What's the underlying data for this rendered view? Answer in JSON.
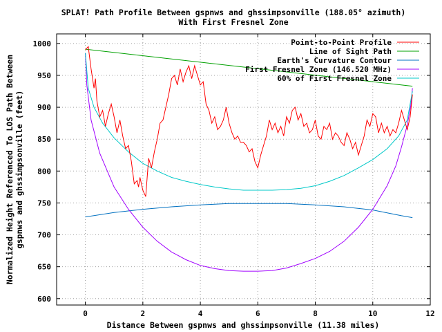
{
  "chart_data": {
    "type": "line",
    "title": [
      "SPLAT! Path Profile Between gspnws and ghssimpsonville (188.05° azimuth)",
      "With First Fresnel Zone"
    ],
    "xlabel": "Distance Between gspnws and ghssimpsonville (11.38 miles)",
    "ylabel": [
      "Normalized Height Referenced To LOS Path Between",
      "gspnws and ghssimpsonville (feet)"
    ],
    "xlim": [
      -1,
      12
    ],
    "ylim": [
      590,
      1015
    ],
    "xticks": [
      0,
      2,
      4,
      6,
      8,
      10,
      12
    ],
    "yticks": [
      600,
      650,
      700,
      750,
      800,
      850,
      900,
      950,
      1000
    ],
    "grid": true,
    "legend_position": "top-right",
    "series": [
      {
        "name": "Point-to-Point Profile",
        "color": "#ff0000",
        "x": [
          0,
          0.1,
          0.2,
          0.3,
          0.35,
          0.4,
          0.5,
          0.6,
          0.7,
          0.8,
          0.9,
          1.0,
          1.1,
          1.2,
          1.3,
          1.4,
          1.5,
          1.6,
          1.7,
          1.8,
          1.85,
          1.9,
          2.0,
          2.1,
          2.15,
          2.2,
          2.3,
          2.4,
          2.5,
          2.6,
          2.7,
          2.8,
          2.9,
          3.0,
          3.1,
          3.2,
          3.3,
          3.4,
          3.5,
          3.6,
          3.7,
          3.8,
          3.9,
          4.0,
          4.1,
          4.2,
          4.3,
          4.4,
          4.5,
          4.6,
          4.7,
          4.8,
          4.9,
          5.0,
          5.1,
          5.2,
          5.3,
          5.4,
          5.5,
          5.6,
          5.7,
          5.8,
          5.9,
          6.0,
          6.1,
          6.2,
          6.3,
          6.4,
          6.5,
          6.6,
          6.7,
          6.8,
          6.9,
          7.0,
          7.1,
          7.2,
          7.3,
          7.4,
          7.5,
          7.6,
          7.7,
          7.8,
          7.9,
          8.0,
          8.1,
          8.2,
          8.3,
          8.4,
          8.5,
          8.6,
          8.7,
          8.8,
          8.9,
          9.0,
          9.1,
          9.2,
          9.3,
          9.4,
          9.5,
          9.6,
          9.7,
          9.8,
          9.9,
          10.0,
          10.1,
          10.2,
          10.3,
          10.4,
          10.5,
          10.6,
          10.7,
          10.8,
          10.9,
          11.0,
          11.1,
          11.2,
          11.3,
          11.38
        ],
        "y": [
          990,
          995,
          960,
          930,
          945,
          910,
          885,
          895,
          870,
          890,
          905,
          885,
          860,
          880,
          855,
          835,
          840,
          815,
          780,
          785,
          775,
          790,
          770,
          760,
          790,
          820,
          805,
          830,
          850,
          875,
          880,
          900,
          920,
          945,
          950,
          935,
          960,
          940,
          955,
          965,
          945,
          965,
          950,
          935,
          940,
          905,
          895,
          875,
          885,
          865,
          870,
          880,
          900,
          875,
          860,
          850,
          855,
          845,
          845,
          840,
          830,
          835,
          815,
          805,
          825,
          840,
          855,
          880,
          865,
          875,
          860,
          870,
          855,
          885,
          875,
          895,
          900,
          880,
          890,
          870,
          875,
          860,
          865,
          880,
          855,
          850,
          870,
          865,
          875,
          850,
          860,
          855,
          845,
          840,
          860,
          850,
          835,
          845,
          825,
          840,
          855,
          880,
          870,
          890,
          885,
          860,
          875,
          860,
          870,
          855,
          865,
          860,
          875,
          895,
          880,
          865,
          885,
          920
        ]
      },
      {
        "name": "Line of Sight Path",
        "color": "#00a000",
        "x": [
          0,
          11.38
        ],
        "y": [
          991,
          933
        ]
      },
      {
        "name": "Earth's Curvature Contour",
        "color": "#0070c0",
        "x": [
          0,
          1,
          2,
          3,
          4,
          5,
          6,
          7,
          8,
          9,
          10,
          11,
          11.38
        ],
        "y": [
          728,
          735,
          740,
          744,
          747,
          749,
          749,
          749,
          747,
          744,
          739,
          730,
          727
        ]
      },
      {
        "name": "First Fresnel Zone (146.520 MHz)",
        "color": "#a000ff",
        "x": [
          0,
          0.05,
          0.2,
          0.5,
          1.0,
          1.5,
          2.0,
          2.5,
          3.0,
          3.5,
          4.0,
          4.5,
          5.0,
          5.5,
          6.0,
          6.5,
          7.0,
          7.5,
          8.0,
          8.5,
          9.0,
          9.5,
          10.0,
          10.5,
          10.8,
          11.0,
          11.2,
          11.33,
          11.38
        ],
        "y": [
          985,
          935,
          880,
          828,
          775,
          740,
          712,
          690,
          673,
          661,
          652,
          647,
          644,
          643,
          643,
          644,
          648,
          655,
          663,
          674,
          690,
          712,
          740,
          777,
          808,
          838,
          872,
          905,
          930
        ]
      },
      {
        "name": "60% of First Fresnel Zone",
        "color": "#00c8c8",
        "x": [
          0,
          0.1,
          0.3,
          0.6,
          1.0,
          1.5,
          2.0,
          2.5,
          3.0,
          3.5,
          4.0,
          4.5,
          5.0,
          5.5,
          6.0,
          6.5,
          7.0,
          7.5,
          8.0,
          8.5,
          9.0,
          9.5,
          10.0,
          10.5,
          10.9,
          11.2,
          11.38
        ],
        "y": [
          985,
          930,
          900,
          875,
          852,
          830,
          812,
          800,
          790,
          784,
          779,
          775,
          772,
          770,
          770,
          770,
          771,
          773,
          777,
          784,
          793,
          805,
          818,
          835,
          855,
          880,
          925
        ]
      }
    ]
  }
}
